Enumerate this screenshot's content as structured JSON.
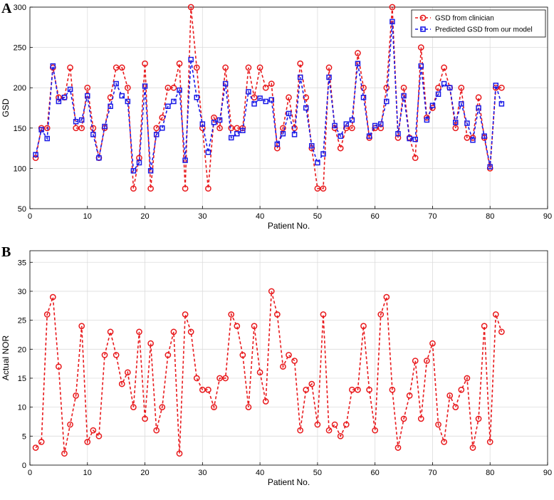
{
  "chart_data": [
    {
      "panel_label": "A",
      "type": "line",
      "title": "",
      "xlabel": "Patient No.",
      "ylabel": "GSD",
      "xlim": [
        0,
        90
      ],
      "ylim": [
        50,
        300
      ],
      "xticks": [
        0,
        10,
        20,
        30,
        40,
        50,
        60,
        70,
        80,
        90
      ],
      "yticks": [
        50,
        100,
        150,
        200,
        250,
        300
      ],
      "grid": true,
      "legend_position": "top-right",
      "x": [
        1,
        2,
        3,
        4,
        5,
        6,
        7,
        8,
        9,
        10,
        11,
        12,
        13,
        14,
        15,
        16,
        17,
        18,
        19,
        20,
        21,
        22,
        23,
        24,
        25,
        26,
        27,
        28,
        29,
        30,
        31,
        32,
        33,
        34,
        35,
        36,
        37,
        38,
        39,
        40,
        41,
        42,
        43,
        44,
        45,
        46,
        47,
        48,
        49,
        50,
        51,
        52,
        53,
        54,
        55,
        56,
        57,
        58,
        59,
        60,
        61,
        62,
        63,
        64,
        65,
        66,
        67,
        68,
        69,
        70,
        71,
        72,
        73,
        74,
        75,
        76,
        77,
        78,
        79,
        80,
        81,
        82
      ],
      "series": [
        {
          "name": "GSD from clinician",
          "color": "#e8191c",
          "marker": "circle",
          "values": [
            113,
            150,
            150,
            225,
            188,
            188,
            225,
            150,
            150,
            200,
            150,
            113,
            150,
            188,
            225,
            225,
            200,
            75,
            113,
            230,
            75,
            150,
            163,
            200,
            200,
            230,
            75,
            300,
            225,
            150,
            75,
            163,
            150,
            225,
            150,
            150,
            150,
            225,
            188,
            225,
            200,
            205,
            125,
            150,
            188,
            150,
            230,
            188,
            125,
            75,
            75,
            225,
            150,
            125,
            150,
            150,
            243,
            200,
            138,
            150,
            150,
            200,
            300,
            138,
            200,
            138,
            113,
            250,
            163,
            175,
            200,
            225,
            200,
            150,
            200,
            138,
            138,
            188,
            138,
            100,
            200,
            200
          ]
        },
        {
          "name": "Predicted GSD from our model",
          "color": "#1a1ae6",
          "marker": "square",
          "values": [
            117,
            148,
            137,
            227,
            183,
            188,
            198,
            158,
            160,
            190,
            142,
            113,
            152,
            177,
            205,
            190,
            183,
            97,
            107,
            202,
            97,
            142,
            150,
            177,
            183,
            197,
            110,
            235,
            188,
            155,
            120,
            157,
            160,
            205,
            138,
            143,
            147,
            195,
            180,
            187,
            183,
            185,
            130,
            143,
            168,
            142,
            213,
            175,
            128,
            107,
            118,
            213,
            153,
            140,
            155,
            160,
            230,
            188,
            140,
            153,
            155,
            183,
            282,
            143,
            190,
            137,
            136,
            227,
            160,
            178,
            192,
            205,
            200,
            157,
            180,
            156,
            135,
            175,
            140,
            102,
            203,
            180
          ]
        }
      ]
    },
    {
      "panel_label": "B",
      "type": "line",
      "title": "",
      "xlabel": "Patient No.",
      "ylabel": "Actual NOR",
      "xlim": [
        0,
        90
      ],
      "ylim": [
        0,
        37
      ],
      "xticks": [
        0,
        10,
        20,
        30,
        40,
        50,
        60,
        70,
        80,
        90
      ],
      "yticks": [
        0,
        5,
        10,
        15,
        20,
        25,
        30,
        35
      ],
      "grid": true,
      "x": [
        1,
        2,
        3,
        4,
        5,
        6,
        7,
        8,
        9,
        10,
        11,
        12,
        13,
        14,
        15,
        16,
        17,
        18,
        19,
        20,
        21,
        22,
        23,
        24,
        25,
        26,
        27,
        28,
        29,
        30,
        31,
        32,
        33,
        34,
        35,
        36,
        37,
        38,
        39,
        40,
        41,
        42,
        43,
        44,
        45,
        46,
        47,
        48,
        49,
        50,
        51,
        52,
        53,
        54,
        55,
        56,
        57,
        58,
        59,
        60,
        61,
        62,
        63,
        64,
        65,
        66,
        67,
        68,
        69,
        70,
        71,
        72,
        73,
        74,
        75,
        76,
        77,
        78,
        79,
        80,
        81,
        82
      ],
      "series": [
        {
          "name": "Actual NOR",
          "color": "#e8191c",
          "marker": "circle",
          "values": [
            3,
            4,
            26,
            29,
            17,
            2,
            7,
            12,
            24,
            4,
            6,
            5,
            19,
            23,
            19,
            14,
            16,
            10,
            23,
            8,
            21,
            6,
            10,
            19,
            23,
            2,
            26,
            23,
            15,
            13,
            13,
            10,
            15,
            15,
            26,
            24,
            19,
            10,
            24,
            16,
            11,
            30,
            26,
            17,
            19,
            18,
            6,
            13,
            14,
            7,
            26,
            6,
            7,
            5,
            7,
            13,
            13,
            24,
            13,
            6,
            26,
            29,
            13,
            3,
            8,
            12,
            18,
            8,
            18,
            21,
            7,
            4,
            12,
            10,
            13,
            15,
            3,
            8,
            24,
            4,
            26,
            23
          ]
        }
      ]
    }
  ]
}
